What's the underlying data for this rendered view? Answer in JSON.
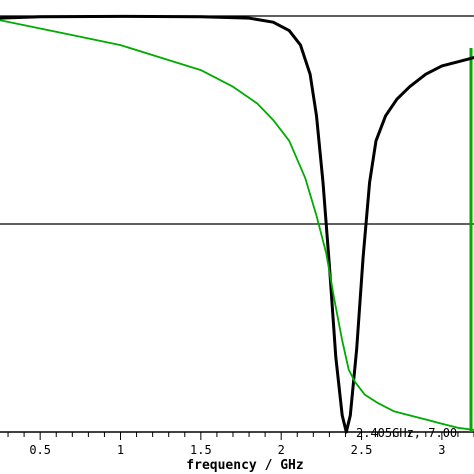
{
  "chart_data": {
    "type": "line",
    "title": "",
    "xlabel": "frequency / GHz",
    "ylabel": "",
    "xlim": [
      0.25,
      3.2
    ],
    "ylim": [
      0,
      1
    ],
    "x_ticks": [
      "0.5",
      "1",
      "1.5",
      "2",
      "2.5",
      "3"
    ],
    "grid": false,
    "annotation": "2.405GHz, 7.00",
    "series": [
      {
        "color": "#000000",
        "x": [
          0.25,
          0.5,
          1.0,
          1.5,
          1.8,
          1.95,
          2.05,
          2.12,
          2.18,
          2.22,
          2.26,
          2.3,
          2.34,
          2.38,
          2.405,
          2.43,
          2.47,
          2.51,
          2.55,
          2.59,
          2.65,
          2.72,
          2.8,
          2.9,
          3.0,
          3.1,
          3.2
        ],
        "y": [
          0.995,
          0.998,
          0.999,
          0.998,
          0.995,
          0.985,
          0.965,
          0.93,
          0.86,
          0.76,
          0.6,
          0.4,
          0.18,
          0.04,
          0.0,
          0.04,
          0.2,
          0.42,
          0.6,
          0.7,
          0.76,
          0.8,
          0.83,
          0.86,
          0.88,
          0.89,
          0.9
        ]
      },
      {
        "color": "#00aa00",
        "x": [
          0.25,
          0.5,
          0.75,
          1.0,
          1.25,
          1.5,
          1.7,
          1.85,
          1.95,
          2.05,
          2.15,
          2.22,
          2.28,
          2.33,
          2.38,
          2.42,
          2.46,
          2.52,
          2.6,
          2.7,
          2.8,
          2.9,
          3.0,
          3.1,
          3.2
        ],
        "y": [
          0.99,
          0.97,
          0.95,
          0.93,
          0.9,
          0.87,
          0.83,
          0.79,
          0.75,
          0.7,
          0.61,
          0.52,
          0.43,
          0.32,
          0.22,
          0.15,
          0.12,
          0.09,
          0.07,
          0.05,
          0.04,
          0.03,
          0.02,
          0.01,
          0.005
        ]
      }
    ]
  }
}
